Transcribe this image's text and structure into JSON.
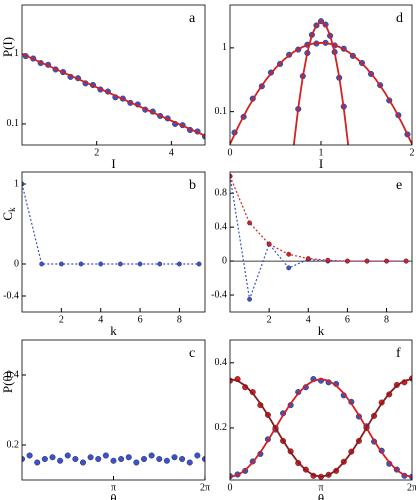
{
  "chart_data": [
    {
      "type": "scatter",
      "panel_label": "a",
      "xlabel": "I",
      "ylabel": "P(I)",
      "ylog": true,
      "xlim": [
        0,
        4.9
      ],
      "ylim": [
        0.05,
        5
      ],
      "xticks": [
        2,
        4
      ],
      "yticks": [
        1,
        0.1
      ],
      "series": [
        {
          "style": "points",
          "color": "#3b52c8",
          "x": [
            0.1,
            0.3,
            0.5,
            0.7,
            0.9,
            1.1,
            1.3,
            1.5,
            1.7,
            1.9,
            2.1,
            2.3,
            2.5,
            2.7,
            2.9,
            3.1,
            3.3,
            3.5,
            3.7,
            3.9,
            4.1,
            4.3,
            4.5,
            4.7,
            4.9
          ],
          "values": [
            0.93,
            0.86,
            0.74,
            0.7,
            0.6,
            0.55,
            0.47,
            0.45,
            0.38,
            0.36,
            0.31,
            0.29,
            0.24,
            0.23,
            0.2,
            0.19,
            0.16,
            0.15,
            0.13,
            0.12,
            0.1,
            0.096,
            0.082,
            0.078,
            0.066
          ]
        },
        {
          "style": "line",
          "color": "#d42020",
          "x": [
            0,
            1,
            2,
            3,
            4,
            4.9
          ],
          "values": [
            1,
            0.577,
            0.333,
            0.192,
            0.111,
            0.068
          ]
        }
      ]
    },
    {
      "type": "scatter",
      "panel_label": "d",
      "xlabel": "I",
      "ylog": true,
      "xlim": [
        0,
        2
      ],
      "ylim": [
        0.03,
        4.7
      ],
      "xticks": [
        0,
        1,
        2
      ],
      "yticks": [
        1,
        0.1
      ],
      "series": [
        {
          "style": "points",
          "color": "#3b52c8",
          "x": [
            0.05,
            0.15,
            0.25,
            0.35,
            0.45,
            0.55,
            0.65,
            0.75,
            0.85,
            0.95,
            1.05,
            1.15,
            1.25,
            1.35,
            1.45,
            1.55,
            1.65,
            1.75,
            1.85,
            1.95
          ],
          "values": [
            0.047,
            0.083,
            0.16,
            0.25,
            0.41,
            0.56,
            0.78,
            0.94,
            1.12,
            1.17,
            1.2,
            1.09,
            0.97,
            0.75,
            0.58,
            0.39,
            0.26,
            0.15,
            0.088,
            0.044
          ]
        },
        {
          "style": "points",
          "color": "#3b52c8",
          "x": [
            0.75,
            0.8,
            0.85,
            0.9,
            0.95,
            1,
            1.05,
            1.1,
            1.15,
            1.2,
            1.25
          ],
          "values": [
            0.11,
            0.36,
            0.83,
            1.6,
            2.25,
            2.62,
            2.32,
            1.55,
            0.86,
            0.34,
            0.12
          ]
        },
        {
          "style": "line",
          "color": "#d42020",
          "x": [
            0,
            0.1,
            0.2,
            0.3,
            0.4,
            0.5,
            0.6,
            0.7,
            0.8,
            0.9,
            1,
            1.1,
            1.2,
            1.3,
            1.4,
            1.5,
            1.6,
            1.7,
            1.8,
            1.9,
            2
          ],
          "values": [
            0.031,
            0.062,
            0.116,
            0.201,
            0.323,
            0.482,
            0.669,
            0.864,
            1.037,
            1.157,
            1.2,
            1.157,
            1.037,
            0.864,
            0.669,
            0.482,
            0.323,
            0.201,
            0.116,
            0.062,
            0.031
          ]
        },
        {
          "style": "line",
          "color": "#d42020",
          "x": [
            0.7,
            0.75,
            0.8,
            0.85,
            0.9,
            0.95,
            1,
            1.05,
            1.1,
            1.15,
            1.2,
            1.25,
            1.3
          ],
          "values": [
            0.029,
            0.114,
            0.352,
            0.845,
            1.578,
            2.294,
            2.6,
            2.294,
            1.578,
            0.845,
            0.352,
            0.114,
            0.029
          ]
        }
      ]
    },
    {
      "type": "line",
      "panel_label": "b",
      "xlabel": "k",
      "ylabel": "C",
      "ylabel_sub": "k",
      "xlim": [
        0,
        9.3
      ],
      "ylim": [
        -0.6,
        1.15
      ],
      "xticks": [
        2,
        4,
        6,
        8
      ],
      "yticks": [
        1,
        0,
        -0.4
      ],
      "series": [
        {
          "style": "dashed-points",
          "color": "#3b52c8",
          "x": [
            0,
            1,
            2,
            3,
            4,
            5,
            6,
            7,
            8,
            9
          ],
          "values": [
            1,
            0,
            0,
            0,
            0,
            0,
            0,
            0,
            0,
            0
          ]
        }
      ]
    },
    {
      "type": "line",
      "panel_label": "e",
      "xlabel": "k",
      "zero_line": true,
      "xlim": [
        0,
        9.3
      ],
      "ylim": [
        -0.6,
        1.05
      ],
      "xticks": [
        2,
        4,
        6,
        8
      ],
      "yticks": [
        0.8,
        0.4,
        0,
        -0.4
      ],
      "series": [
        {
          "style": "dashed-points",
          "color": "#3b52c8",
          "x": [
            0,
            1,
            2,
            3,
            4,
            5,
            6,
            7,
            8,
            9
          ],
          "values": [
            1,
            -0.45,
            0.2,
            -0.08,
            0.02,
            0,
            0,
            0,
            0,
            0
          ]
        },
        {
          "style": "dashed-points",
          "color": "#d42020",
          "x": [
            0,
            1,
            2,
            3,
            4,
            5,
            6,
            7,
            8,
            9
          ],
          "values": [
            1,
            0.45,
            0.2,
            0.08,
            0.03,
            0.01,
            0,
            0,
            0,
            0
          ]
        }
      ]
    },
    {
      "type": "scatter",
      "panel_label": "c",
      "xlabel": "θ",
      "ylabel": "P(θ)",
      "xlim": [
        0,
        6.2832
      ],
      "ylim": [
        0.1,
        0.5
      ],
      "xticks": [
        {
          "value": 3.14159,
          "label": "π"
        },
        {
          "value": 6.28319,
          "label": "2π"
        }
      ],
      "yticks": [
        0.2,
        0.4
      ],
      "series": [
        {
          "style": "points",
          "color": "#3b52c8",
          "x": [
            0,
            0.2618,
            0.5236,
            0.7854,
            1.0472,
            1.309,
            1.5708,
            1.8326,
            2.0944,
            2.3562,
            2.618,
            2.8798,
            3.1416,
            3.4034,
            3.6652,
            3.927,
            4.1888,
            4.4506,
            4.7124,
            4.9742,
            5.236,
            5.4978,
            5.7596,
            6.0214,
            6.2832
          ],
          "values": [
            0.16,
            0.17,
            0.15,
            0.16,
            0.165,
            0.155,
            0.17,
            0.16,
            0.15,
            0.165,
            0.16,
            0.17,
            0.155,
            0.16,
            0.165,
            0.15,
            0.16,
            0.17,
            0.16,
            0.155,
            0.165,
            0.16,
            0.15,
            0.17,
            0.16
          ]
        }
      ]
    },
    {
      "type": "scatter",
      "panel_label": "f",
      "xlabel": "θ",
      "xlim": [
        0,
        6.2832
      ],
      "ylim": [
        0.04,
        0.47
      ],
      "xticks": [
        0,
        {
          "value": 3.14159,
          "label": "π"
        },
        {
          "value": 6.28319,
          "label": "2π"
        }
      ],
      "yticks": [
        0.2,
        0.4
      ],
      "series": [
        {
          "style": "points",
          "color": "#3b52c8",
          "x": [
            0,
            0.2618,
            0.5236,
            0.7854,
            1.0472,
            1.309,
            1.5708,
            1.8326,
            2.0944,
            2.3562,
            2.618,
            2.8798,
            3.1416,
            3.4034,
            3.6652,
            3.927,
            4.1888,
            4.4506,
            4.7124,
            4.9742,
            5.236,
            5.4978,
            5.7596,
            6.0214,
            6.2832
          ],
          "values": [
            0.052,
            0.057,
            0.068,
            0.097,
            0.12,
            0.165,
            0.195,
            0.245,
            0.27,
            0.31,
            0.325,
            0.35,
            0.345,
            0.34,
            0.335,
            0.3,
            0.28,
            0.235,
            0.205,
            0.158,
            0.13,
            0.09,
            0.072,
            0.053,
            0.05
          ]
        },
        {
          "style": "points",
          "color": "#d42020",
          "x": [
            0,
            0.2618,
            0.5236,
            0.7854,
            1.0472,
            1.309,
            1.5708,
            1.8326,
            2.0944,
            2.3562,
            2.618,
            2.8798,
            3.1416,
            3.4034,
            3.6652,
            3.927,
            4.1888,
            4.4506,
            4.7124,
            4.9742,
            5.236,
            5.4978,
            5.7596,
            6.0214,
            6.2832
          ],
          "values": [
            0.345,
            0.35,
            0.325,
            0.31,
            0.27,
            0.24,
            0.2,
            0.16,
            0.128,
            0.092,
            0.072,
            0.053,
            0.05,
            0.056,
            0.068,
            0.096,
            0.127,
            0.16,
            0.2,
            0.237,
            0.278,
            0.303,
            0.332,
            0.34,
            0.352
          ]
        },
        {
          "style": "line",
          "color": "#d42020",
          "x": [
            0,
            0.2618,
            0.5236,
            0.7854,
            1.0472,
            1.309,
            1.5708,
            1.8326,
            2.0944,
            2.3562,
            2.618,
            2.8798,
            3.1416,
            3.4034,
            3.6652,
            3.927,
            4.1888,
            4.4506,
            4.7124,
            4.9742,
            5.236,
            5.4978,
            5.7596,
            6.0214,
            6.2832
          ],
          "values": [
            0.05,
            0.055,
            0.07,
            0.094,
            0.125,
            0.161,
            0.2,
            0.239,
            0.275,
            0.306,
            0.33,
            0.345,
            0.35,
            0.345,
            0.33,
            0.306,
            0.275,
            0.239,
            0.2,
            0.161,
            0.125,
            0.094,
            0.07,
            0.055,
            0.05
          ]
        },
        {
          "style": "line",
          "color": "#8a1a1a",
          "x": [
            0,
            0.2618,
            0.5236,
            0.7854,
            1.0472,
            1.309,
            1.5708,
            1.8326,
            2.0944,
            2.3562,
            2.618,
            2.8798,
            3.1416,
            3.4034,
            3.6652,
            3.927,
            4.1888,
            4.4506,
            4.7124,
            4.9742,
            5.236,
            5.4978,
            5.7596,
            6.0214,
            6.2832
          ],
          "values": [
            0.35,
            0.345,
            0.33,
            0.306,
            0.275,
            0.239,
            0.2,
            0.161,
            0.125,
            0.094,
            0.07,
            0.055,
            0.05,
            0.055,
            0.07,
            0.094,
            0.125,
            0.161,
            0.2,
            0.239,
            0.275,
            0.306,
            0.33,
            0.345,
            0.35
          ]
        }
      ]
    }
  ]
}
